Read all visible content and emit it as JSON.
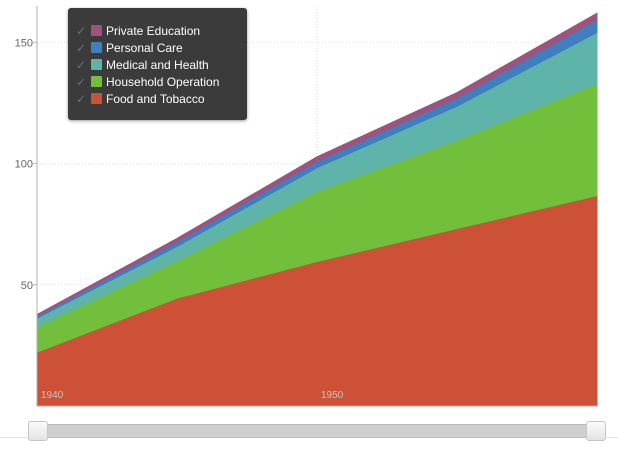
{
  "chart_data": {
    "type": "area",
    "stacked": true,
    "title": "",
    "xlabel": "",
    "ylabel": "",
    "x": [
      "1940",
      "1945",
      "1950",
      "1955",
      "1960"
    ],
    "x_tick_labels": [
      "1940",
      "1950"
    ],
    "ylim": [
      0,
      165
    ],
    "y_ticks": [
      50,
      100,
      150
    ],
    "grid": true,
    "legend_position": "top-left",
    "series": [
      {
        "name": "Food and Tobacco",
        "color": "#cc5137",
        "values": [
          22.2,
          44.5,
          59.6,
          73.2,
          86.8
        ]
      },
      {
        "name": "Household Operation",
        "color": "#71bf3a",
        "values": [
          10.5,
          15.5,
          29.0,
          36.5,
          46.2
        ]
      },
      {
        "name": "Medical and Health",
        "color": "#5fb4a9",
        "values": [
          3.5,
          5.8,
          9.7,
          14.0,
          21.1
        ]
      },
      {
        "name": "Personal Care",
        "color": "#3f7fbf",
        "values": [
          1.0,
          2.0,
          2.7,
          3.4,
          5.4
        ]
      },
      {
        "name": "Private Education",
        "color": "#a0527e",
        "values": [
          0.5,
          1.3,
          1.8,
          2.2,
          2.5
        ]
      }
    ]
  },
  "legend": {
    "items": [
      {
        "label": "Private Education",
        "color": "#a0527e"
      },
      {
        "label": "Personal Care",
        "color": "#3f7fbf"
      },
      {
        "label": "Medical and Health",
        "color": "#5fb4a9"
      },
      {
        "label": "Household Operation",
        "color": "#71bf3a"
      },
      {
        "label": "Food and Tobacco",
        "color": "#cc5137"
      }
    ],
    "check_icon": "checkmark-icon"
  },
  "range_slider": {
    "start": 0,
    "end": 1
  }
}
